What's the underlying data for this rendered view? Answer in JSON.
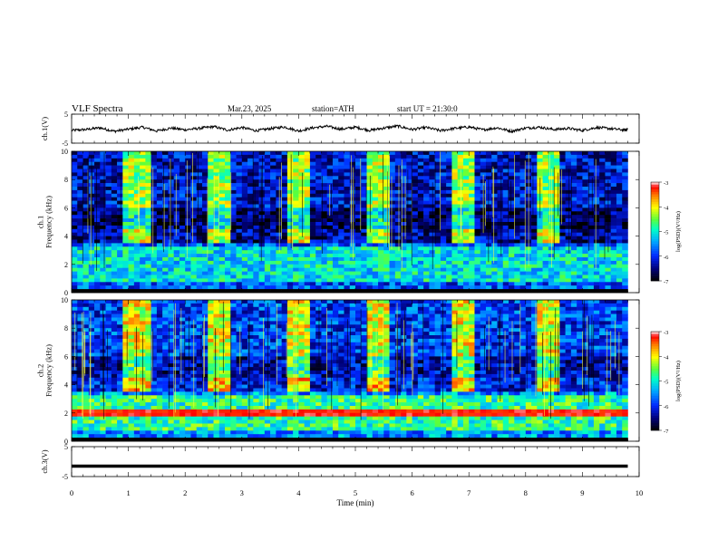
{
  "header": {
    "title": "VLF  Spectra",
    "date": "Mar.23, 2025",
    "station": "station=ATH",
    "start_ut": "start  UT  =    21:30:0"
  },
  "colors": {
    "colormap": [
      "#000000",
      "#00007f",
      "#0000ff",
      "#00aaff",
      "#00ffcc",
      "#66ff33",
      "#ffff00",
      "#ff8800",
      "#ff0000",
      "#ffffff"
    ],
    "waveform": "#000000",
    "axis": "#000000"
  },
  "chart_data": [
    {
      "type": "line",
      "name": "ch1-waveform",
      "ylabel": "ch.1(V)",
      "ylim": [
        -5,
        5
      ],
      "yticks": [
        "5",
        "-5"
      ],
      "xlim": [
        0,
        10
      ],
      "x": [
        0,
        0.25,
        0.5,
        0.75,
        1.0,
        1.25,
        1.5,
        1.75,
        2.0,
        2.25,
        2.5,
        2.75,
        3.0,
        3.25,
        3.5,
        3.75,
        4.0,
        4.25,
        4.5,
        4.75,
        5.0,
        5.25,
        5.5,
        5.75,
        6.0,
        6.25,
        6.5,
        6.75,
        7.0,
        7.25,
        7.5,
        7.75,
        8.0,
        8.25,
        8.5,
        8.75,
        9.0,
        9.25,
        9.5,
        9.75,
        9.8
      ],
      "values": [
        -0.6,
        -0.3,
        0.3,
        -0.9,
        -0.2,
        0.5,
        -0.8,
        0.2,
        -0.4,
        0.1,
        0.7,
        -0.5,
        0.4,
        -0.7,
        0.0,
        0.6,
        -0.8,
        0.3,
        0.8,
        -0.2,
        0.5,
        -0.6,
        0.2,
        0.9,
        -0.3,
        0.4,
        -0.7,
        0.1,
        0.6,
        -0.4,
        0.3,
        -0.9,
        0.2,
        0.5,
        -0.3,
        0.1,
        -0.6,
        0.4,
        0.0,
        -0.5,
        -0.2
      ]
    },
    {
      "type": "heatmap",
      "name": "ch1-spectrogram",
      "ylabel": "ch.1\nFrequency  (kHz)",
      "ylim": [
        0,
        10
      ],
      "yticks": [
        "0",
        "2",
        "4",
        "6",
        "8",
        "10"
      ],
      "xlim": [
        0,
        9.8
      ],
      "colorbar": {
        "label": "log(PSD)(V²/Hz)",
        "range": [
          -7,
          -3
        ],
        "ticks": [
          "-3",
          "-4",
          "-5",
          "-6",
          "-7"
        ]
      },
      "burst_intervals_min": [
        [
          0.95,
          1.35
        ],
        [
          2.4,
          2.8
        ],
        [
          3.8,
          4.25
        ],
        [
          5.25,
          5.6
        ],
        [
          6.75,
          7.1
        ],
        [
          8.2,
          8.55
        ]
      ],
      "hum_band_khz": [
        3.6,
        4.6
      ],
      "background_level": -5.8,
      "burst_level": -4.3
    },
    {
      "type": "heatmap",
      "name": "ch2-spectrogram",
      "ylabel": "ch.2\nFrequency  (kHz)",
      "ylim": [
        0,
        10
      ],
      "yticks": [
        "0",
        "2",
        "4",
        "6",
        "8",
        "10"
      ],
      "xlim": [
        0,
        9.8
      ],
      "colorbar": {
        "label": "log(PSD)(V²/Hz)",
        "range": [
          -7,
          -3
        ],
        "ticks": [
          "-3",
          "-4",
          "-5",
          "-6",
          "-7"
        ]
      },
      "burst_intervals_min": [
        [
          0.95,
          1.35
        ],
        [
          2.4,
          2.8
        ],
        [
          3.8,
          4.25
        ],
        [
          5.25,
          5.6
        ],
        [
          6.75,
          7.1
        ],
        [
          8.2,
          8.55
        ]
      ],
      "hum_band_khz": [
        3.6,
        4.6
      ],
      "strong_band_khz": [
        1.9,
        2.1
      ],
      "background_level": -5.5,
      "burst_level": -4.0
    },
    {
      "type": "line",
      "name": "ch3-waveform",
      "ylabel": "ch.3(V)",
      "ylim": [
        -5,
        5
      ],
      "yticks": [
        "5",
        "-5"
      ],
      "xlim": [
        0,
        10
      ],
      "x": [
        0,
        9.8
      ],
      "values": [
        -1.5,
        -1.5
      ]
    }
  ],
  "xaxis": {
    "label": "Time  (min)",
    "ticks": [
      "0",
      "1",
      "2",
      "3",
      "4",
      "5",
      "6",
      "7",
      "8",
      "9",
      "10"
    ]
  }
}
